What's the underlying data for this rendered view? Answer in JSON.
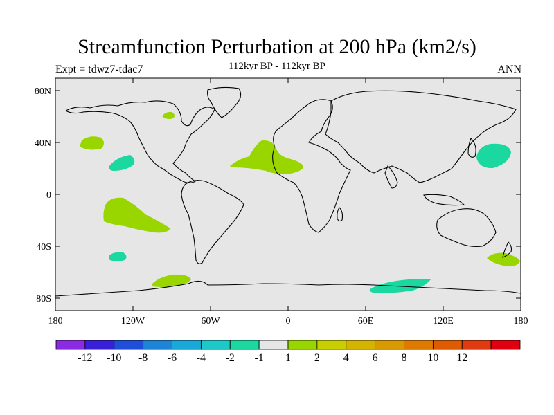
{
  "title": "Streamfunction Perturbation at 200 hPa (km2/s)",
  "subtitle_left": "Expt = tdwz7-tdac7",
  "subtitle_center": "112kyr BP - 112kyr BP",
  "subtitle_right": "ANN",
  "y_ticks": [
    "80N",
    "40N",
    "0",
    "40S",
    "80S"
  ],
  "x_ticks": [
    "180",
    "120W",
    "60W",
    "0",
    "60E",
    "120E",
    "180"
  ],
  "colorbar": {
    "colors": [
      "#8a2be2",
      "#3a1fd8",
      "#1f4fd8",
      "#1e84d8",
      "#1aa8d8",
      "#1cc8c8",
      "#1ad8a0",
      "#e6e6e6",
      "#99d600",
      "#c8cf00",
      "#d4b400",
      "#d99a00",
      "#de7a00",
      "#e05a00",
      "#e03a10",
      "#e00010"
    ],
    "labels": [
      "-12",
      "-10",
      "-8",
      "-6",
      "-4",
      "-2",
      "-1",
      "1",
      "2",
      "4",
      "6",
      "8",
      "10",
      "12"
    ]
  },
  "map": {
    "background_color": "#e6e6e6",
    "blobs": [
      {
        "name": "blob-pacific-ne",
        "color": "#99d600",
        "lon": -160,
        "lat": 40
      },
      {
        "name": "blob-pacific-e",
        "color": "#1ad8a0",
        "lon": -137,
        "lat": 25
      },
      {
        "name": "blob-hudson",
        "color": "#99d600",
        "lon": -85,
        "lat": 61
      },
      {
        "name": "blob-atlantic-africa",
        "color": "#99d600",
        "lon": -20,
        "lat": 24
      },
      {
        "name": "blob-pacific-w",
        "color": "#1ad8a0",
        "lon": 160,
        "lat": 29
      },
      {
        "name": "blob-pacific-s",
        "color": "#99d600",
        "lon": -130,
        "lat": -17
      },
      {
        "name": "blob-pacific-s-small",
        "color": "#1ad8a0",
        "lon": -138,
        "lat": -48
      },
      {
        "name": "blob-amundsen",
        "color": "#99d600",
        "lon": -95,
        "lat": -67
      },
      {
        "name": "blob-indian-s",
        "color": "#1ad8a0",
        "lon": 85,
        "lat": -71
      },
      {
        "name": "blob-nz-east",
        "color": "#99d600",
        "lon": 168,
        "lat": -49
      }
    ]
  }
}
